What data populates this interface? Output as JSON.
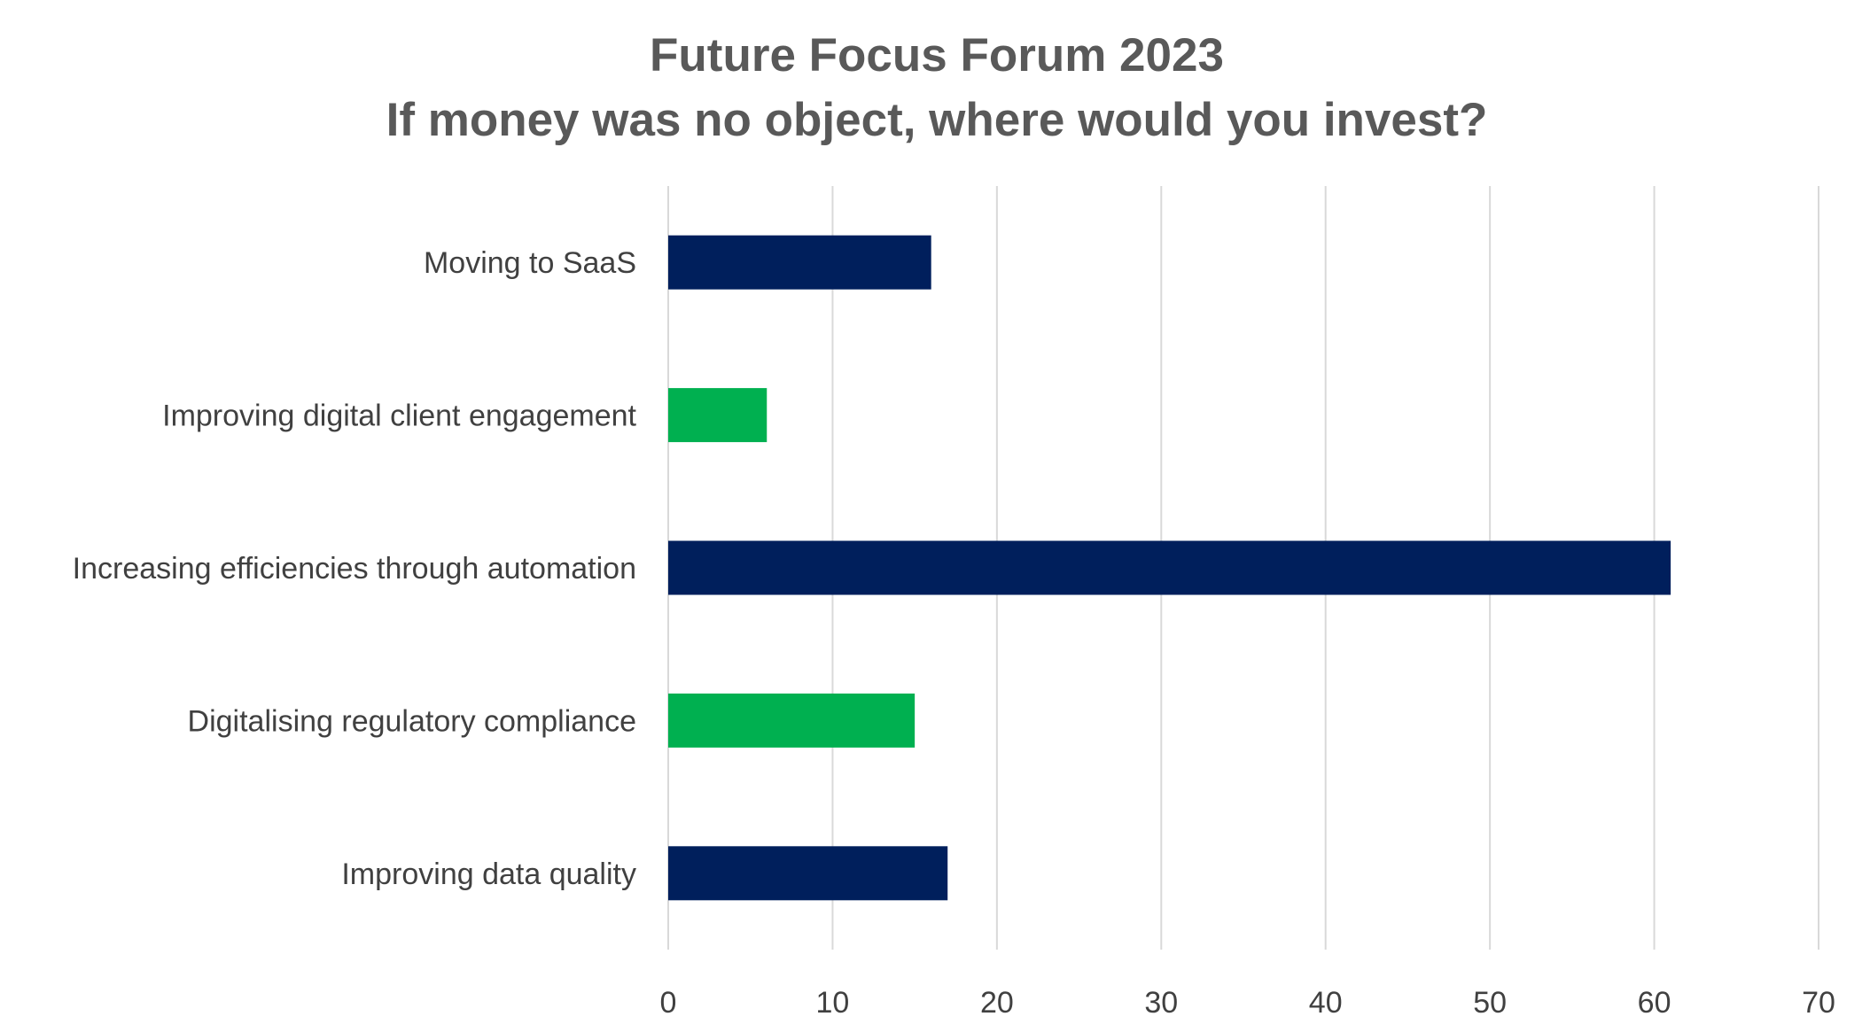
{
  "chart_data": {
    "type": "bar",
    "orientation": "horizontal",
    "title_lines": [
      "Future Focus Forum 2023",
      "If money was no object, where would you invest?"
    ],
    "categories": [
      "Moving to SaaS",
      "Improving digital client engagement",
      "Increasing efficiencies through automation",
      "Digitalising regulatory compliance",
      "Improving data quality"
    ],
    "values": [
      16,
      6,
      61,
      15,
      17
    ],
    "bar_colors": [
      "#001f5c",
      "#00b050",
      "#001f5c",
      "#00b050",
      "#001f5c"
    ],
    "xlim": [
      0,
      70
    ],
    "xticks": [
      0,
      10,
      20,
      30,
      40,
      50,
      60,
      70
    ],
    "xlabel": "",
    "ylabel": "",
    "grid": true,
    "legend": "none"
  },
  "colors": {
    "navy": "#001f5c",
    "green": "#00b050",
    "title_text": "#595959",
    "label_text": "#404040",
    "grid": "#d9d9d9"
  }
}
